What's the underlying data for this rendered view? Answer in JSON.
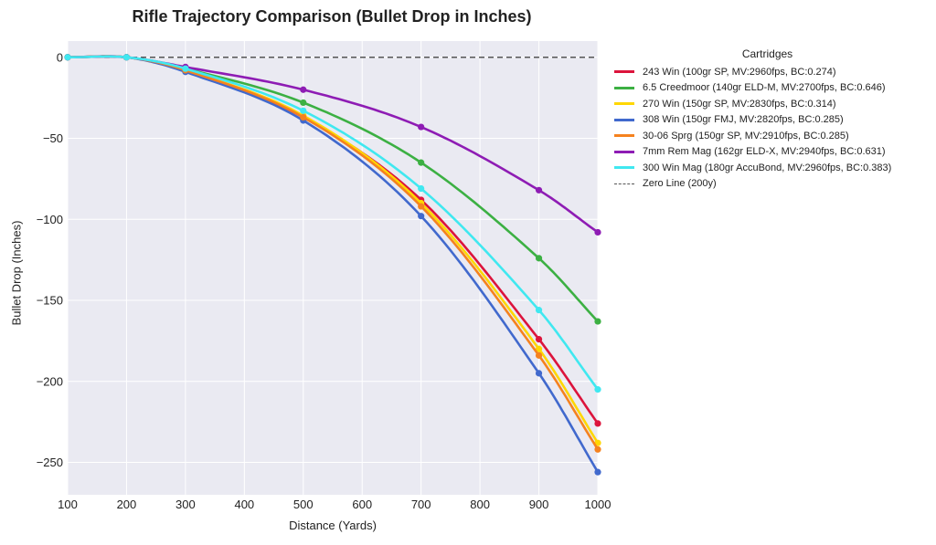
{
  "chart_data": {
    "type": "line",
    "title": "Rifle Trajectory Comparison (Bullet Drop in Inches)",
    "xlabel": "Distance (Yards)",
    "ylabel": "Bullet Drop (Inches)",
    "xlim": [
      100,
      1000
    ],
    "ylim": [
      -270,
      10
    ],
    "xticks": [
      100,
      200,
      300,
      400,
      500,
      600,
      700,
      800,
      900,
      1000
    ],
    "yticks": [
      0,
      -50,
      -100,
      -150,
      -200,
      -250
    ],
    "ytick_labels": [
      "0",
      "−50",
      "−100",
      "−150",
      "−200",
      "−250"
    ],
    "grid": true,
    "legend_title": "Cartridges",
    "legend_position": "outside-right",
    "x": [
      100,
      200,
      300,
      500,
      700,
      900,
      1000
    ],
    "series": [
      {
        "name": "243 Win (100gr SP, MV:2960fps, BC:0.274)",
        "color": "#dc143c",
        "values": [
          0,
          0,
          -8,
          -37,
          -88,
          -174,
          -226
        ]
      },
      {
        "name": "6.5 Creedmoor (140gr ELD-M, MV:2700fps, BC:0.646)",
        "color": "#3cb043",
        "values": [
          0,
          0,
          -7,
          -28,
          -65,
          -124,
          -163
        ]
      },
      {
        "name": "270 Win (150gr SP, MV:2830fps, BC:0.314)",
        "color": "#ffd700",
        "values": [
          0,
          0,
          -8,
          -36,
          -90,
          -180,
          -238
        ]
      },
      {
        "name": "308 Win (150gr FMJ, MV:2820fps, BC:0.285)",
        "color": "#4169cd",
        "values": [
          0,
          0,
          -9,
          -39,
          -98,
          -195,
          -256
        ]
      },
      {
        "name": "30-06 Sprg (150gr SP, MV:2910fps, BC:0.285)",
        "color": "#f5821f",
        "values": [
          0,
          0,
          -8,
          -37,
          -92,
          -184,
          -242
        ]
      },
      {
        "name": "7mm Rem Mag (162gr ELD-X, MV:2940fps, BC:0.631)",
        "color": "#8e1cb4",
        "values": [
          0,
          0,
          -6,
          -20,
          -43,
          -82,
          -108
        ]
      },
      {
        "name": "300 Win Mag (180gr AccuBond, MV:2960fps, BC:0.383)",
        "color": "#40e8f0",
        "values": [
          0,
          0,
          -7,
          -33,
          -81,
          -156,
          -205
        ]
      }
    ],
    "reference_line": {
      "name": "Zero Line (200y)",
      "y": 0,
      "color": "#555555",
      "style": "dashed"
    }
  }
}
